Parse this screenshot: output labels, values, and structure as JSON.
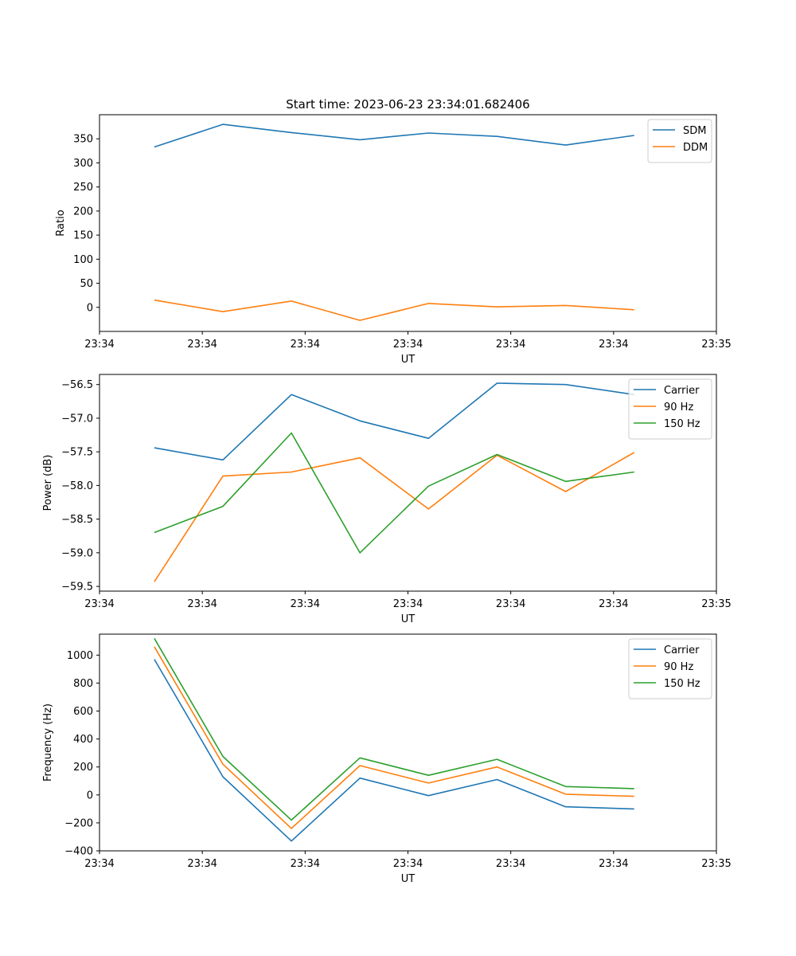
{
  "figure": {
    "title": "Start time: 2023-06-23 23:34:01.682406"
  },
  "chart_data": [
    {
      "type": "line",
      "title": "Start time: 2023-06-23 23:34:01.682406",
      "xlabel": "UT",
      "ylabel": "Ratio",
      "x": [
        1,
        2,
        3,
        4,
        5,
        6,
        7,
        8
      ],
      "xlim": [
        0.2,
        9.2
      ],
      "xticks": [
        0.2,
        1.7,
        3.2,
        4.7,
        6.2,
        7.7,
        9.2
      ],
      "xticklabels": [
        "23:34",
        "23:34",
        "23:34",
        "23:34",
        "23:34",
        "23:34",
        "23:35"
      ],
      "ylim": [
        -50,
        400
      ],
      "yticks": [
        0,
        50,
        100,
        150,
        200,
        250,
        300,
        350
      ],
      "legend_loc": "upper right",
      "grid": false,
      "series": [
        {
          "name": "SDM",
          "color": "#1f77b4",
          "values": [
            333,
            380,
            363,
            348,
            362,
            355,
            337,
            357
          ]
        },
        {
          "name": "DDM",
          "color": "#ff7f0e",
          "values": [
            15,
            -9,
            13,
            -27,
            8,
            1,
            4,
            -5
          ]
        }
      ]
    },
    {
      "type": "line",
      "title": "",
      "xlabel": "UT",
      "ylabel": "Power (dB)",
      "x": [
        1,
        2,
        3,
        4,
        5,
        6,
        7,
        8
      ],
      "xlim": [
        0.2,
        9.2
      ],
      "xticks": [
        0.2,
        1.7,
        3.2,
        4.7,
        6.2,
        7.7,
        9.2
      ],
      "xticklabels": [
        "23:34",
        "23:34",
        "23:34",
        "23:34",
        "23:34",
        "23:34",
        "23:35"
      ],
      "ylim": [
        -59.57,
        -56.35
      ],
      "yticks": [
        -59.5,
        -59.0,
        -58.5,
        -58.0,
        -57.5,
        -57.0,
        -56.5
      ],
      "yticklabels": [
        "−59.5",
        "−59.0",
        "−58.5",
        "−58.0",
        "−57.5",
        "−57.0",
        "−56.5"
      ],
      "legend_loc": "upper right",
      "grid": false,
      "series": [
        {
          "name": "Carrier",
          "color": "#1f77b4",
          "values": [
            -57.44,
            -57.62,
            -56.65,
            -57.04,
            -57.3,
            -56.48,
            -56.5,
            -56.65
          ]
        },
        {
          "name": "90 Hz",
          "color": "#ff7f0e",
          "values": [
            -59.43,
            -57.86,
            -57.8,
            -57.59,
            -58.35,
            -57.55,
            -58.09,
            -57.51
          ]
        },
        {
          "name": "150 Hz",
          "color": "#2ca02c",
          "values": [
            -58.7,
            -58.31,
            -57.22,
            -59.0,
            -58.01,
            -57.54,
            -57.94,
            -57.8
          ]
        }
      ]
    },
    {
      "type": "line",
      "title": "",
      "xlabel": "UT",
      "ylabel": "Frequency (Hz)",
      "x": [
        1,
        2,
        3,
        4,
        5,
        6,
        7,
        8
      ],
      "xlim": [
        0.2,
        9.2
      ],
      "xticks": [
        0.2,
        1.7,
        3.2,
        4.7,
        6.2,
        7.7,
        9.2
      ],
      "xticklabels": [
        "23:34",
        "23:34",
        "23:34",
        "23:34",
        "23:34",
        "23:34",
        "23:35"
      ],
      "ylim": [
        -400,
        1150
      ],
      "yticks": [
        -400,
        -200,
        0,
        200,
        400,
        600,
        800,
        1000
      ],
      "yticklabels": [
        "−400",
        "−200",
        "0",
        "200",
        "400",
        "600",
        "800",
        "1000"
      ],
      "legend_loc": "upper right",
      "grid": false,
      "series": [
        {
          "name": "Carrier",
          "color": "#1f77b4",
          "values": [
            970,
            130,
            -330,
            120,
            -5,
            110,
            -85,
            -100
          ]
        },
        {
          "name": "90 Hz",
          "color": "#ff7f0e",
          "values": [
            1060,
            220,
            -240,
            210,
            85,
            200,
            5,
            -10
          ]
        },
        {
          "name": "150 Hz",
          "color": "#2ca02c",
          "values": [
            1120,
            275,
            -180,
            265,
            140,
            255,
            60,
            45
          ]
        }
      ]
    }
  ]
}
